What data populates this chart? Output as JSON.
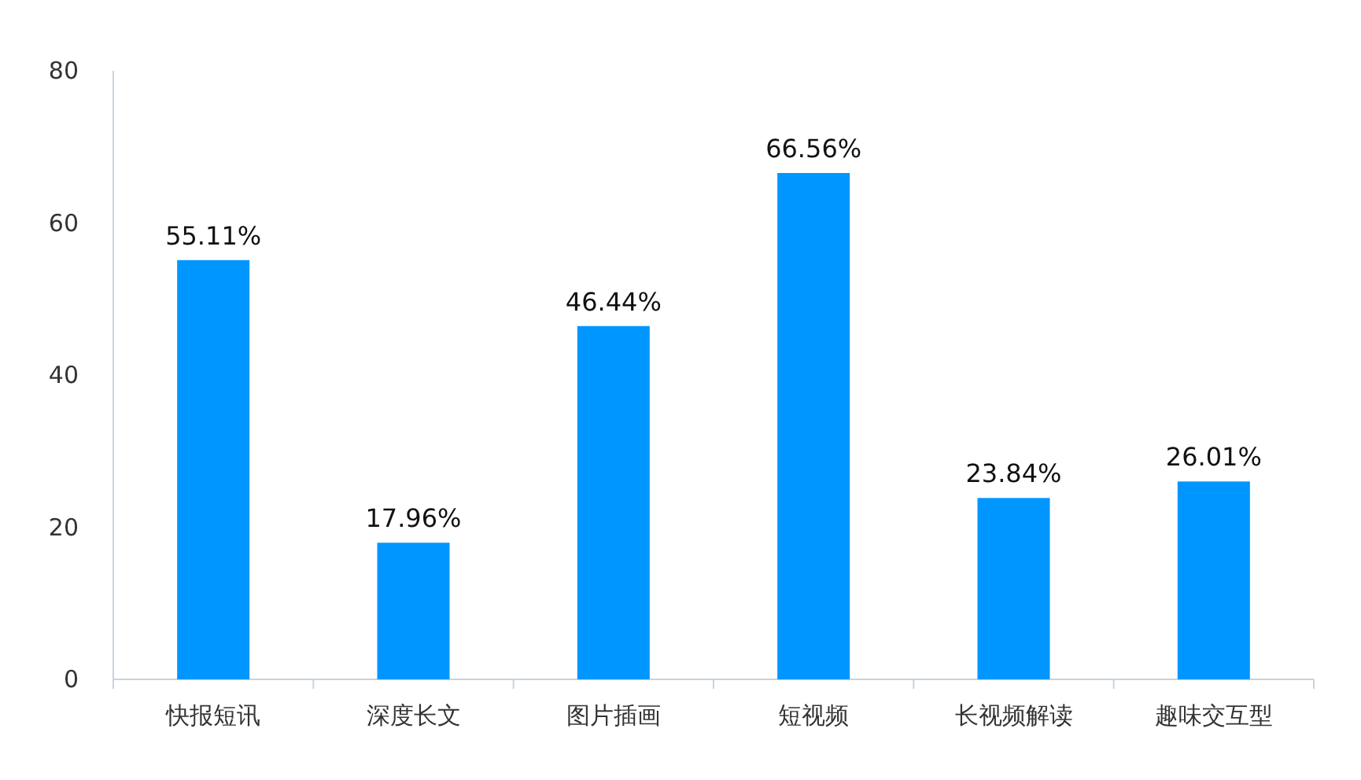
{
  "chart_data": {
    "type": "bar",
    "categories": [
      "快报短讯",
      "深度长文",
      "图片插画",
      "短视频",
      "长视频解读",
      "趣味交互型"
    ],
    "values": [
      55.11,
      17.96,
      46.44,
      66.56,
      23.84,
      26.01
    ],
    "value_labels": [
      "55.11%",
      "17.96%",
      "46.44%",
      "66.56%",
      "23.84%",
      "26.01%"
    ],
    "color": "#0096ff",
    "ylim": [
      0,
      80
    ],
    "yticks": [
      0,
      20,
      40,
      60,
      80
    ]
  }
}
